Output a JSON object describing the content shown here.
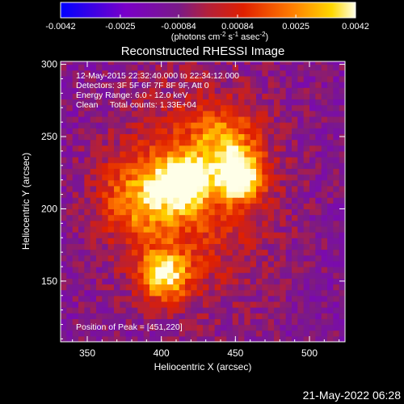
{
  "chart_data": {
    "type": "heatmap",
    "title": "Reconstructed RHESSI Image",
    "xlabel": "Heliocentric X (arcsec)",
    "ylabel": "Heliocentric Y (arcsec)",
    "xlim": [
      332,
      524
    ],
    "ylim": [
      108,
      302
    ],
    "x_ticks": [
      "350",
      "400",
      "450",
      "500"
    ],
    "x_tick_values": [
      350,
      400,
      450,
      500
    ],
    "y_ticks": [
      "150",
      "200",
      "250",
      "300"
    ],
    "y_tick_values": [
      150,
      200,
      250,
      300
    ],
    "colorbar": {
      "ticks": [
        "-0.0042",
        "-0.0025",
        "-0.00084",
        "0.00084",
        "0.0025",
        "0.0042"
      ],
      "range": [
        -0.0042,
        0.0042
      ],
      "unit_label": "(photons cm",
      "unit_sup1": "-2",
      "unit_s": " s",
      "unit_sup2": "-1",
      "unit_asec": " asec",
      "unit_sup3": "-2",
      "unit_close": ")"
    },
    "annotations": [
      "12-May-2015 22:32:40.000 to 22:34:12.000",
      "Detectors: 3F 5F 6F 7F 8F 9F, Att 0",
      "Energy Range: 6.0 - 12.0 keV",
      "Clean     Total counts: 1.33E+04"
    ],
    "peak_label": "Position of Peak = [451,220]",
    "sources": [
      {
        "x": 451,
        "y": 220,
        "value": 0.0042
      },
      {
        "x": 413,
        "y": 217,
        "value": 0.004
      },
      {
        "x": 400,
        "y": 152,
        "value": 0.0036
      },
      {
        "x": 385,
        "y": 205,
        "value": 0.002
      },
      {
        "x": 440,
        "y": 245,
        "value": 0.0018
      }
    ]
  },
  "footer": {
    "timestamp": "21-May-2022 06:28"
  }
}
